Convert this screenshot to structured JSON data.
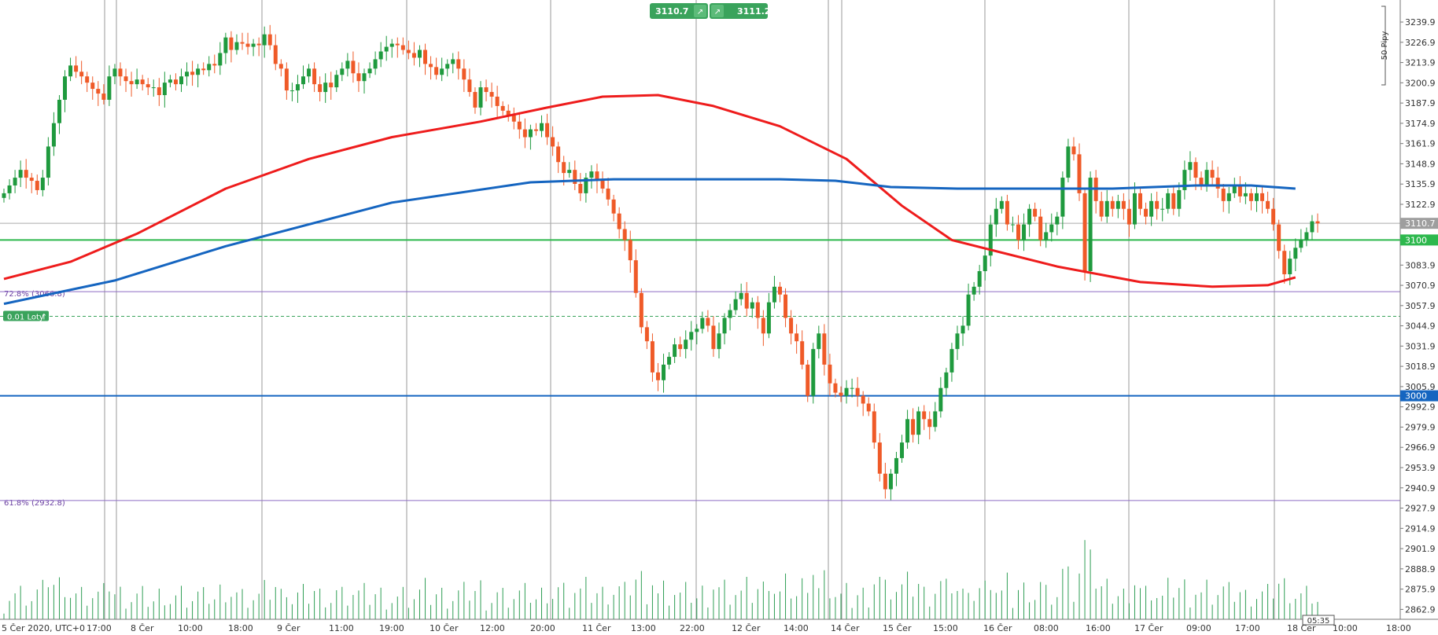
{
  "chart_data": {
    "type": "candlestick",
    "y_axis": {
      "ticks": [
        "3239.9",
        "3226.9",
        "3213.9",
        "3200.9",
        "3187.9",
        "3174.9",
        "3161.9",
        "3148.9",
        "3135.9",
        "3122.9",
        "3083.9",
        "3070.9",
        "3057.9",
        "3044.9",
        "3031.9",
        "3018.9",
        "3005.9",
        "2992.9",
        "2979.9",
        "2966.9",
        "2953.9",
        "2940.9",
        "2927.9",
        "2914.9",
        "2901.9",
        "2888.9",
        "2875.9",
        "2862.9"
      ],
      "range": [
        2852,
        3249
      ]
    },
    "x_axis": {
      "ticks": [
        "5 Čer 2020, UTC+0",
        "17:00",
        "8 Čer",
        "10:00",
        "18:00",
        "9 Čer",
        "11:00",
        "19:00",
        "10 Čer",
        "12:00",
        "20:00",
        "11 Čer",
        "13:00",
        "22:00",
        "12 Čer",
        "14:00",
        "14 Čer",
        "15 Čer",
        "15:00",
        "16 Čer",
        "08:00",
        "16:00",
        "17 Čer",
        "09:00",
        "17:00",
        "18 Čer",
        "10:00",
        "18:00"
      ],
      "bar_count": 250
    },
    "price_labels": {
      "current": "3110.7",
      "level_3100": "3100",
      "level_3000": "3000"
    },
    "top_buttons": {
      "sell": "3110.7",
      "buy": "3111.2"
    },
    "scale_marker": "50 Pipy",
    "fibonacci": [
      {
        "label": "72.8% (3066.8)",
        "price": 3066.8
      },
      {
        "label": "61.8% (2932.8)",
        "price": 2932.8
      }
    ],
    "horizontal_lines": [
      {
        "price": 3100,
        "color": "#2db84d"
      },
      {
        "price": 3000,
        "color": "#1565c0"
      },
      {
        "price": 3110.7,
        "color": "#aaaaaa"
      }
    ],
    "position": {
      "label": "0.01 Loty",
      "price": 3051
    },
    "timer": "05:35",
    "moving_averages": [
      {
        "color": "#ee1c1c",
        "points": [
          [
            0,
            3075
          ],
          [
            12,
            3086
          ],
          [
            24,
            3104
          ],
          [
            40,
            3133
          ],
          [
            55,
            3152
          ],
          [
            70,
            3166
          ],
          [
            86,
            3176
          ],
          [
            98,
            3185
          ],
          [
            108,
            3192
          ],
          [
            118,
            3193
          ],
          [
            128,
            3186
          ],
          [
            140,
            3173
          ],
          [
            152,
            3152
          ],
          [
            162,
            3122
          ],
          [
            171,
            3100
          ],
          [
            190,
            3083
          ],
          [
            205,
            3073
          ],
          [
            218,
            3070
          ],
          [
            228,
            3071
          ],
          [
            233,
            3076
          ]
        ]
      },
      {
        "color": "#1565c0",
        "points": [
          [
            0,
            3059
          ],
          [
            20,
            3074
          ],
          [
            40,
            3096
          ],
          [
            70,
            3124
          ],
          [
            95,
            3137
          ],
          [
            110,
            3139
          ],
          [
            140,
            3139
          ],
          [
            150,
            3138
          ],
          [
            160,
            3134
          ],
          [
            172,
            3133
          ],
          [
            200,
            3133
          ],
          [
            215,
            3135
          ],
          [
            225,
            3135
          ],
          [
            233,
            3133
          ]
        ]
      }
    ],
    "candles": {
      "start_index": 0,
      "closes": [
        3130,
        3135,
        3140,
        3145,
        3140,
        3138,
        3132,
        3140,
        3160,
        3175,
        3190,
        3205,
        3212,
        3208,
        3205,
        3201,
        3197,
        3194,
        3190,
        3205,
        3210,
        3205,
        3202,
        3200,
        3203,
        3200,
        3198,
        3198,
        3193,
        3201,
        3203,
        3200,
        3205,
        3208,
        3206,
        3210,
        3209,
        3213,
        3212,
        3220,
        3230,
        3222,
        3227,
        3226,
        3224,
        3226,
        3225,
        3232,
        3225,
        3213,
        3210,
        3196,
        3196,
        3200,
        3205,
        3210,
        3200,
        3195,
        3201,
        3198,
        3206,
        3210,
        3215,
        3207,
        3202,
        3207,
        3210,
        3216,
        3221,
        3224,
        3226,
        3225,
        3222,
        3220,
        3217,
        3222,
        3213,
        3211,
        3206,
        3210,
        3213,
        3216,
        3210,
        3203,
        3195,
        3185,
        3198,
        3195,
        3192,
        3186,
        3183,
        3180,
        3176,
        3171,
        3166,
        3171,
        3170,
        3175,
        3166,
        3160,
        3150,
        3143,
        3145,
        3136,
        3130,
        3140,
        3144,
        3138,
        3133,
        3126,
        3117,
        3107,
        3100,
        3087,
        3066,
        3044,
        3035,
        3015,
        3010,
        3020,
        3025,
        3033,
        3030,
        3036,
        3041,
        3043,
        3050,
        3045,
        3030,
        3040,
        3050,
        3055,
        3062,
        3066,
        3056,
        3060,
        3050,
        3040,
        3060,
        3070,
        3065,
        3050,
        3040,
        3035,
        3020,
        3000,
        3030,
        3040,
        3020,
        3008,
        3002,
        3000,
        3005,
        3005,
        3000,
        2995,
        2990,
        2970,
        2950,
        2940,
        2950,
        2960,
        2970,
        2985,
        2975,
        2990,
        2985,
        2980,
        2990,
        3005,
        3015,
        3030,
        3040,
        3045,
        3065,
        3070,
        3080,
        3090,
        3110,
        3120,
        3125,
        3110,
        3110,
        3100,
        3110,
        3120,
        3115,
        3100,
        3105,
        3110,
        3115,
        3140,
        3160,
        3155,
        3130,
        3080,
        3140,
        3125,
        3115,
        3125,
        3120,
        3125,
        3120,
        3110,
        3130,
        3120,
        3115,
        3125,
        3120,
        3120,
        3130,
        3120,
        3132,
        3145,
        3150,
        3140,
        3135,
        3145,
        3140,
        3133,
        3125,
        3130,
        3135,
        3128,
        3130,
        3125,
        3130,
        3125,
        3120,
        3110,
        3093,
        3078,
        3088,
        3095,
        3100,
        3105,
        3112,
        3110.7
      ]
    },
    "volume_range": [
      0,
      64
    ]
  }
}
